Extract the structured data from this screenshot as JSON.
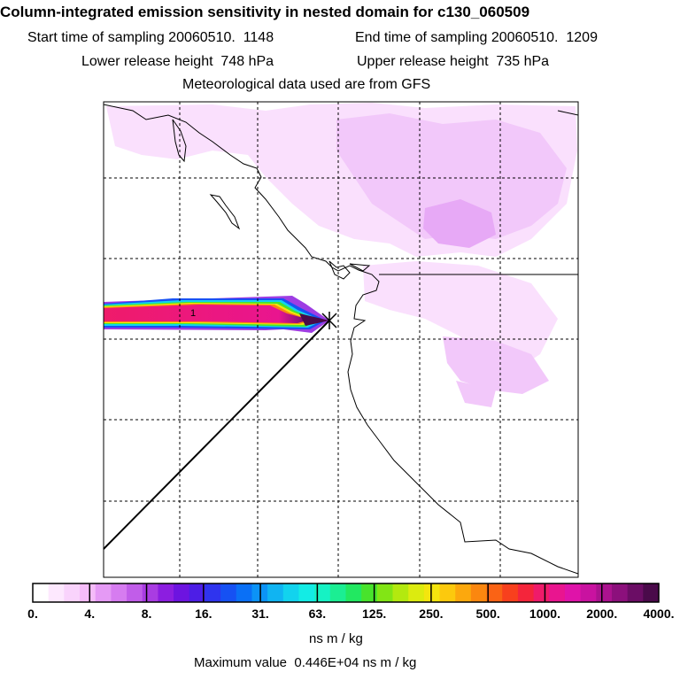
{
  "header": {
    "title": "Column-integrated emission sensitivity in nested domain for c130_060509",
    "start_time": "Start time of sampling 20060510.  1148",
    "end_time": "End time of sampling 20060510.  1209",
    "lower_release": "Lower release height  748 hPa",
    "upper_release": "Upper release height  735 hPa",
    "met_data": "Meteorological data used are from GFS"
  },
  "map": {
    "plume_label": "1",
    "release_marker": "release-point"
  },
  "colorbar": {
    "labels": [
      "0.",
      "4.",
      "8.",
      "16.",
      "31.",
      "63.",
      "125.",
      "250.",
      "500.",
      "1000.",
      "2000.",
      "4000."
    ],
    "units": "ns m / kg",
    "colors": [
      "#ffffff",
      "#fde8fe",
      "#f9d3fc",
      "#f5bcf9",
      "#e59af5",
      "#d67cf0",
      "#c15de9",
      "#a93ce2",
      "#8c1ee0",
      "#6d14e0",
      "#4d1ee6",
      "#2f34ee",
      "#1651f3",
      "#0a70f6",
      "#0c93f6",
      "#10b4f2",
      "#12d3ee",
      "#13ece5",
      "#16f2c4",
      "#1bee93",
      "#22e861",
      "#48e32c",
      "#82e515",
      "#b3e90f",
      "#dceb0f",
      "#f4e50e",
      "#fcc90d",
      "#fca80d",
      "#fb870f",
      "#fa6315",
      "#f8401d",
      "#f4253b",
      "#ef1b6a",
      "#e9158f",
      "#df13a9",
      "#c912a0",
      "#ab128f",
      "#8c107c",
      "#6b0d65",
      "#4a0a4a"
    ]
  },
  "max_value": "Maximum value  0.446E+04 ns m / kg"
}
